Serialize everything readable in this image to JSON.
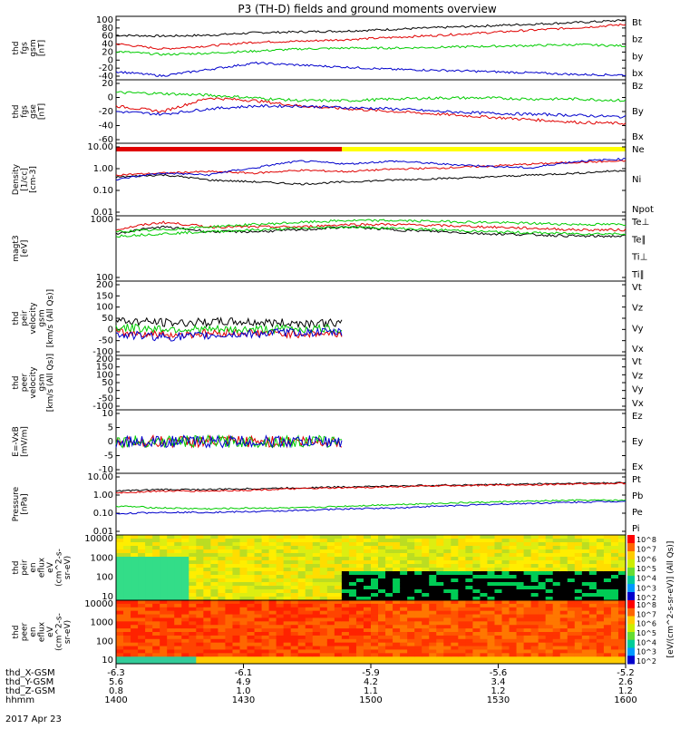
{
  "title": "P3 (TH-D) fields and ground moments overview",
  "date_label": "2017 Apr 23",
  "colors": {
    "black": "#000000",
    "red": "#e00000",
    "green": "#00cc00",
    "blue": "#0000cc",
    "yellow": "#ffff00"
  },
  "chart_data": [
    {
      "type": "line",
      "ylabel": [
        "thd",
        "fgs",
        "gsm",
        "[nT]"
      ],
      "ylim": [
        -40,
        100
      ],
      "yticks": [
        "100",
        "80",
        "60",
        "40",
        "20",
        "0",
        "-20",
        "-40"
      ],
      "series": [
        {
          "name": "Bt",
          "color": "red_black",
          "values": [
            60,
            58,
            60,
            66,
            68,
            70,
            74,
            78,
            82,
            86,
            90,
            95
          ]
        },
        {
          "name": "bz",
          "values": [
            40,
            28,
            35,
            44,
            46,
            50,
            55,
            60,
            66,
            72,
            78,
            85
          ]
        },
        {
          "name": "by",
          "values": [
            22,
            15,
            18,
            23,
            28,
            30,
            30,
            32,
            34,
            36,
            38,
            35
          ]
        },
        {
          "name": "bx",
          "values": [
            -25,
            -35,
            -20,
            -5,
            -10,
            -15,
            -20,
            -22,
            -25,
            -28,
            -32,
            -33
          ]
        }
      ]
    },
    {
      "type": "line",
      "ylabel": [
        "thd",
        "fgs",
        "gse",
        "[nT]"
      ],
      "ylim": [
        -70,
        40
      ],
      "yticks": [
        "20",
        "0",
        "-20",
        "-40",
        "-60"
      ],
      "series": [
        {
          "name": "Bz",
          "values": [
            -5,
            -15,
            10,
            5,
            -5,
            -10,
            -15,
            -20,
            -25,
            -30,
            -35,
            -37
          ]
        },
        {
          "name": "By",
          "values": [
            20,
            18,
            15,
            10,
            5,
            5,
            8,
            10,
            10,
            8,
            8,
            5
          ]
        },
        {
          "name": "Bx",
          "values": [
            -15,
            -20,
            -10,
            -5,
            -5,
            -8,
            -10,
            -15,
            -18,
            -20,
            -22,
            -25
          ]
        }
      ],
      "bar": {
        "red_until": "1500",
        "yellow_after": "1500"
      }
    },
    {
      "type": "line",
      "ylabel": [
        "Density",
        "[1/cc]",
        "[cm-3]"
      ],
      "log": true,
      "yticks": [
        "10.00",
        "1.00",
        "0.10",
        "0.01"
      ],
      "series": [
        {
          "name": "Ne",
          "values": [
            0.5,
            0.6,
            0.7,
            0.6,
            0.8,
            0.7,
            0.9,
            1.0,
            1.2,
            1.5,
            1.8,
            2.0
          ]
        },
        {
          "name": "Ni",
          "values": [
            0.4,
            0.5,
            0.3,
            0.25,
            0.2,
            0.25,
            0.3,
            0.35,
            0.4,
            0.5,
            0.6,
            0.8
          ]
        },
        {
          "name": "Npot",
          "values": [
            0.3,
            0.6,
            0.5,
            1.0,
            2.0,
            1.5,
            2.0,
            1.5,
            1.2,
            1.0,
            2.0,
            2.5
          ]
        }
      ]
    },
    {
      "type": "line",
      "ylabel": [
        "magt3",
        "[eV]"
      ],
      "log": true,
      "yticks": [
        "1000",
        "100"
      ],
      "series": [
        {
          "name": "Te⊥",
          "values": [
            4000,
            7000,
            5000,
            5000,
            5000,
            6000,
            6000,
            5500,
            5000,
            4500,
            4000,
            4000
          ]
        },
        {
          "name": "Te∥",
          "values": [
            3000,
            5000,
            3500,
            3500,
            4000,
            5000,
            4000,
            3500,
            3000,
            2800,
            2500,
            2500
          ]
        },
        {
          "name": "Ti⊥",
          "values": [
            3500,
            4000,
            5000,
            6000,
            7000,
            8000,
            8000,
            7500,
            7000,
            6500,
            6000,
            6000
          ]
        },
        {
          "name": "Ti∥",
          "values": [
            2500,
            3000,
            3500,
            4000,
            4500,
            5000,
            4500,
            4000,
            3500,
            3200,
            3000,
            3000
          ]
        }
      ]
    },
    {
      "type": "line",
      "ylabel": [
        "thd",
        "peir",
        "velocity",
        "gsm",
        "[km/s (All Qs)]"
      ],
      "ylim": [
        -100,
        200
      ],
      "yticks": [
        "200",
        "150",
        "100",
        "50",
        "0",
        "-50",
        "-100"
      ],
      "series": [
        {
          "name": "Vt",
          "values": [
            40,
            30,
            35,
            30,
            30
          ]
        },
        {
          "name": "Vz",
          "values": [
            -10,
            -20,
            -10,
            -15,
            -15
          ]
        },
        {
          "name": "Vy",
          "values": [
            10,
            5,
            0,
            5,
            5
          ]
        },
        {
          "name": "Vx",
          "values": [
            -20,
            -30,
            -20,
            -10,
            -10
          ]
        }
      ]
    },
    {
      "type": "line",
      "ylabel": [
        "thd",
        "peer",
        "velocity",
        "gsm",
        "[km/s (All Qs)]"
      ],
      "ylim": [
        -100,
        200
      ],
      "yticks": [
        "200",
        "150",
        "100",
        "50",
        "0",
        "-50",
        "-100"
      ],
      "series": [
        {
          "name": "Vt",
          "values": []
        },
        {
          "name": "Vz",
          "values": []
        },
        {
          "name": "Vy",
          "values": []
        },
        {
          "name": "Vx",
          "values": []
        }
      ]
    },
    {
      "type": "line",
      "ylabel": [
        "E=-VxB",
        "[mV/m]"
      ],
      "ylim": [
        -10,
        10
      ],
      "yticks": [
        "10",
        "5",
        "0",
        "-5",
        "-10"
      ],
      "series": [
        {
          "name": "Ez",
          "values": [
            0,
            0,
            0,
            0,
            0
          ]
        },
        {
          "name": "Ey",
          "values": [
            0,
            0,
            0,
            0,
            0
          ]
        },
        {
          "name": "Ex",
          "values": [
            0,
            0,
            0,
            0,
            0
          ]
        }
      ]
    },
    {
      "type": "line",
      "ylabel": [
        "Pressure",
        "[nPa]"
      ],
      "log": true,
      "yticks": [
        "10.00",
        "1.00",
        "0.10",
        "0.01"
      ],
      "series": [
        {
          "name": "Pt",
          "values": [
            1.5,
            1.8,
            1.8,
            2.0,
            2.2,
            2.5,
            2.7,
            3.0,
            3.2,
            3.5,
            3.8,
            4.0
          ]
        },
        {
          "name": "Pb",
          "values": [
            1.2,
            1.5,
            1.5,
            1.7,
            2.0,
            2.2,
            2.5,
            2.8,
            3.0,
            3.2,
            3.5,
            3.8
          ]
        },
        {
          "name": "Pe",
          "values": [
            0.25,
            0.2,
            0.18,
            0.2,
            0.2,
            0.25,
            0.3,
            0.35,
            0.4,
            0.45,
            0.5,
            0.5
          ]
        },
        {
          "name": "Pi",
          "values": [
            0.1,
            0.12,
            0.12,
            0.13,
            0.15,
            0.18,
            0.2,
            0.25,
            0.3,
            0.35,
            0.4,
            0.45
          ]
        }
      ]
    },
    {
      "type": "heatmap",
      "ylabel": [
        "thd",
        "peir",
        "en",
        "eflux",
        "eV",
        "(cm^2-s-",
        "sr-eV)"
      ],
      "yticks": [
        "10000",
        "1000",
        "100",
        "10"
      ]
    },
    {
      "type": "heatmap",
      "ylabel": [
        "thd",
        "peer",
        "en",
        "eflux",
        "eV",
        "(cm^2-s-",
        "sr-eV)"
      ],
      "yticks": [
        "10000",
        "1000",
        "100",
        "10"
      ]
    }
  ],
  "colorbar": {
    "label": "[eV/(cm^2-s-sr-eV)] (All Qs)]",
    "ticks_top": [
      "10^8",
      "10^7",
      "10^6",
      "10^5",
      "10^4",
      "10^3",
      "10^2"
    ],
    "ticks_bottom": [
      "10^8",
      "10^7",
      "10^6",
      "10^5",
      "10^4",
      "10^3",
      "10^2"
    ]
  },
  "xaxis": {
    "rows": [
      {
        "label": "thd_X-GSM",
        "values": [
          "-6.3",
          "-6.1",
          "-5.9",
          "-5.6",
          "-5.2"
        ]
      },
      {
        "label": "thd_Y-GSM",
        "values": [
          "5.6",
          "4.9",
          "4.2",
          "3.4",
          "2.6"
        ]
      },
      {
        "label": "thd_Z-GSM",
        "values": [
          "0.8",
          "1.0",
          "1.1",
          "1.2",
          "1.2"
        ]
      },
      {
        "label": "hhmm",
        "values": [
          "1400",
          "1430",
          "1500",
          "1530",
          "1600"
        ]
      }
    ]
  }
}
